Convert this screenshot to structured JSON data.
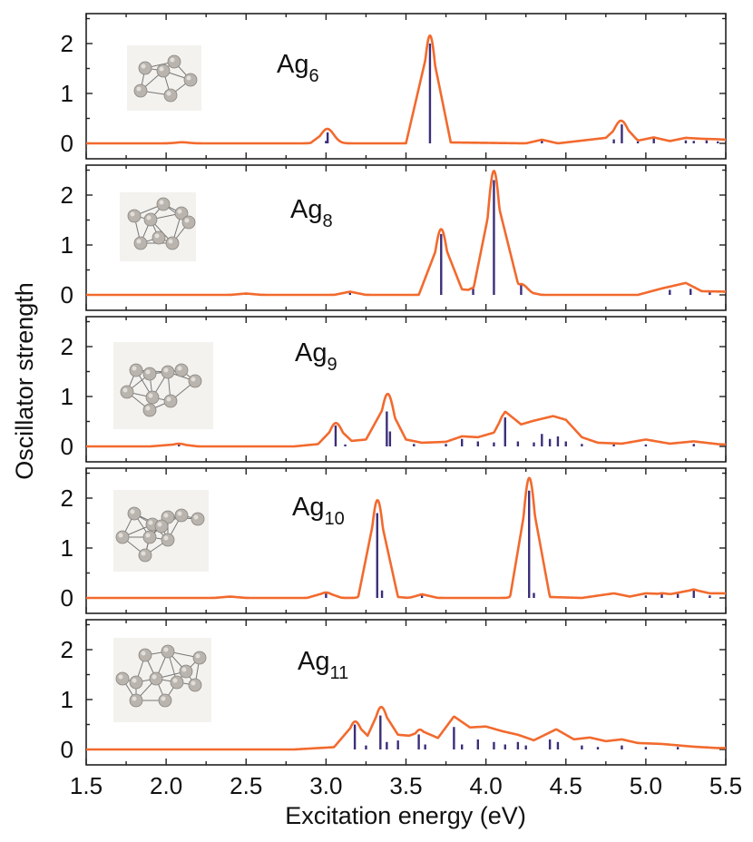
{
  "chart_data": {
    "type": "stacked-line-stick",
    "xlabel": "Excitation energy (eV)",
    "ylabel": "Oscillator strength",
    "xlim": [
      1.5,
      5.5
    ],
    "ylim": [
      0,
      2.5
    ],
    "x_ticks": [
      "1.5",
      "2.0",
      "2.5",
      "3.0",
      "3.5",
      "4.0",
      "4.5",
      "5.0",
      "5.5"
    ],
    "y_ticks": [
      "0",
      "1",
      "2"
    ],
    "line_color": "#f26a2e",
    "stick_color": "#3b2f7a",
    "broadening_sigma_eV": 0.04,
    "panels": [
      {
        "label_base": "Ag",
        "label_sub": "6",
        "sticks": [
          [
            2.1,
            0.02
          ],
          [
            3.0,
            0.05
          ],
          [
            3.01,
            0.22
          ],
          [
            3.65,
            2.0
          ],
          [
            4.35,
            0.06
          ],
          [
            4.8,
            0.08
          ],
          [
            4.85,
            0.38
          ],
          [
            4.95,
            0.04
          ],
          [
            5.05,
            0.1
          ],
          [
            5.25,
            0.06
          ],
          [
            5.3,
            0.05
          ],
          [
            5.38,
            0.06
          ],
          [
            5.45,
            0.04
          ]
        ],
        "line": [
          [
            1.5,
            0
          ],
          [
            2.0,
            0
          ],
          [
            2.1,
            0.02
          ],
          [
            2.2,
            0
          ],
          [
            2.9,
            0
          ],
          [
            3.0,
            0.26
          ],
          [
            3.1,
            0
          ],
          [
            3.5,
            0
          ],
          [
            3.65,
            2.25
          ],
          [
            3.78,
            0.02
          ],
          [
            4.25,
            0
          ],
          [
            4.35,
            0.08
          ],
          [
            4.45,
            0
          ],
          [
            4.75,
            0.12
          ],
          [
            4.85,
            0.44
          ],
          [
            4.95,
            0.06
          ],
          [
            5.05,
            0.13
          ],
          [
            5.15,
            0.05
          ],
          [
            5.25,
            0.12
          ],
          [
            5.35,
            0.1
          ],
          [
            5.45,
            0.09
          ],
          [
            5.5,
            0.08
          ]
        ]
      },
      {
        "label_base": "Ag",
        "label_sub": "8",
        "sticks": [
          [
            2.5,
            0.02
          ],
          [
            3.15,
            0.04
          ],
          [
            3.72,
            1.22
          ],
          [
            3.92,
            0.12
          ],
          [
            4.05,
            2.3
          ],
          [
            4.22,
            0.2
          ],
          [
            5.15,
            0.1
          ],
          [
            5.28,
            0.12
          ],
          [
            5.4,
            0.05
          ]
        ],
        "line": [
          [
            1.5,
            0
          ],
          [
            2.4,
            0
          ],
          [
            2.5,
            0.03
          ],
          [
            2.6,
            0
          ],
          [
            3.05,
            0
          ],
          [
            3.15,
            0.07
          ],
          [
            3.25,
            0
          ],
          [
            3.58,
            0
          ],
          [
            3.72,
            1.27
          ],
          [
            3.85,
            0.12
          ],
          [
            3.92,
            0.1
          ],
          [
            4.05,
            2.35
          ],
          [
            4.2,
            0.25
          ],
          [
            4.28,
            0.05
          ],
          [
            4.35,
            0
          ],
          [
            4.95,
            0
          ],
          [
            5.1,
            0.14
          ],
          [
            5.25,
            0.26
          ],
          [
            5.35,
            0.08
          ],
          [
            5.5,
            0.07
          ]
        ]
      },
      {
        "label_base": "Ag",
        "label_sub": "9",
        "sticks": [
          [
            2.08,
            0.05
          ],
          [
            3.06,
            0.42
          ],
          [
            3.12,
            0.04
          ],
          [
            3.38,
            0.7
          ],
          [
            3.4,
            0.3
          ],
          [
            3.55,
            0.05
          ],
          [
            3.75,
            0.05
          ],
          [
            3.85,
            0.15
          ],
          [
            3.95,
            0.1
          ],
          [
            4.05,
            0.08
          ],
          [
            4.12,
            0.58
          ],
          [
            4.2,
            0.1
          ],
          [
            4.3,
            0.08
          ],
          [
            4.35,
            0.25
          ],
          [
            4.4,
            0.15
          ],
          [
            4.45,
            0.2
          ],
          [
            4.5,
            0.1
          ],
          [
            4.6,
            0.05
          ],
          [
            4.8,
            0.04
          ],
          [
            5.0,
            0.04
          ],
          [
            5.3,
            0.05
          ]
        ],
        "line": [
          [
            1.5,
            0
          ],
          [
            1.9,
            0
          ],
          [
            2.08,
            0.05
          ],
          [
            2.2,
            0
          ],
          [
            2.8,
            0
          ],
          [
            2.95,
            0.05
          ],
          [
            3.06,
            0.45
          ],
          [
            3.16,
            0.12
          ],
          [
            3.25,
            0.15
          ],
          [
            3.38,
            0.97
          ],
          [
            3.5,
            0.15
          ],
          [
            3.6,
            0.08
          ],
          [
            3.75,
            0.1
          ],
          [
            3.85,
            0.22
          ],
          [
            3.95,
            0.2
          ],
          [
            4.05,
            0.3
          ],
          [
            4.12,
            0.76
          ],
          [
            4.22,
            0.48
          ],
          [
            4.3,
            0.56
          ],
          [
            4.42,
            0.66
          ],
          [
            4.5,
            0.58
          ],
          [
            4.6,
            0.2
          ],
          [
            4.7,
            0.08
          ],
          [
            4.85,
            0.06
          ],
          [
            5.0,
            0.15
          ],
          [
            5.15,
            0.06
          ],
          [
            5.3,
            0.11
          ],
          [
            5.45,
            0.05
          ],
          [
            5.5,
            0.04
          ]
        ]
      },
      {
        "label_base": "Ag",
        "label_sub": "10",
        "sticks": [
          [
            2.4,
            0.02
          ],
          [
            3.0,
            0.1
          ],
          [
            3.32,
            1.7
          ],
          [
            3.35,
            0.15
          ],
          [
            3.6,
            0.05
          ],
          [
            4.27,
            2.15
          ],
          [
            4.3,
            0.1
          ],
          [
            5.0,
            0.05
          ],
          [
            5.1,
            0.08
          ],
          [
            5.2,
            0.08
          ],
          [
            5.3,
            0.15
          ],
          [
            5.4,
            0.05
          ]
        ],
        "line": [
          [
            1.5,
            0
          ],
          [
            2.3,
            0
          ],
          [
            2.4,
            0.03
          ],
          [
            2.5,
            0
          ],
          [
            2.88,
            0
          ],
          [
            3.0,
            0.12
          ],
          [
            3.1,
            0
          ],
          [
            3.2,
            0
          ],
          [
            3.32,
            2.08
          ],
          [
            3.45,
            0.02
          ],
          [
            3.52,
            0
          ],
          [
            3.6,
            0.08
          ],
          [
            3.7,
            0
          ],
          [
            4.15,
            0
          ],
          [
            4.27,
            2.48
          ],
          [
            4.4,
            0.02
          ],
          [
            4.6,
            0
          ],
          [
            4.8,
            0.1
          ],
          [
            4.9,
            0.03
          ],
          [
            5.0,
            0.1
          ],
          [
            5.15,
            0.08
          ],
          [
            5.3,
            0.18
          ],
          [
            5.4,
            0.1
          ],
          [
            5.5,
            0.1
          ]
        ]
      },
      {
        "label_base": "Ag",
        "label_sub": "11",
        "sticks": [
          [
            3.18,
            0.5
          ],
          [
            3.25,
            0.08
          ],
          [
            3.34,
            0.68
          ],
          [
            3.38,
            0.15
          ],
          [
            3.45,
            0.18
          ],
          [
            3.58,
            0.3
          ],
          [
            3.62,
            0.1
          ],
          [
            3.8,
            0.45
          ],
          [
            3.85,
            0.1
          ],
          [
            3.95,
            0.2
          ],
          [
            4.05,
            0.15
          ],
          [
            4.12,
            0.1
          ],
          [
            4.2,
            0.15
          ],
          [
            4.25,
            0.08
          ],
          [
            4.4,
            0.2
          ],
          [
            4.45,
            0.15
          ],
          [
            4.6,
            0.08
          ],
          [
            4.7,
            0.05
          ],
          [
            4.85,
            0.08
          ],
          [
            5.0,
            0.05
          ],
          [
            5.2,
            0.05
          ]
        ],
        "line": [
          [
            1.5,
            0
          ],
          [
            2.8,
            0
          ],
          [
            3.05,
            0.05
          ],
          [
            3.18,
            0.58
          ],
          [
            3.26,
            0.3
          ],
          [
            3.34,
            0.92
          ],
          [
            3.45,
            0.32
          ],
          [
            3.52,
            0.3
          ],
          [
            3.6,
            0.4
          ],
          [
            3.7,
            0.25
          ],
          [
            3.8,
            0.72
          ],
          [
            3.9,
            0.48
          ],
          [
            4.0,
            0.5
          ],
          [
            4.1,
            0.4
          ],
          [
            4.2,
            0.32
          ],
          [
            4.3,
            0.2
          ],
          [
            4.44,
            0.44
          ],
          [
            4.55,
            0.22
          ],
          [
            4.65,
            0.26
          ],
          [
            4.75,
            0.18
          ],
          [
            4.85,
            0.22
          ],
          [
            4.95,
            0.14
          ],
          [
            5.1,
            0.12
          ],
          [
            5.3,
            0.06
          ],
          [
            5.45,
            0.03
          ],
          [
            5.5,
            0.03
          ]
        ]
      }
    ]
  }
}
